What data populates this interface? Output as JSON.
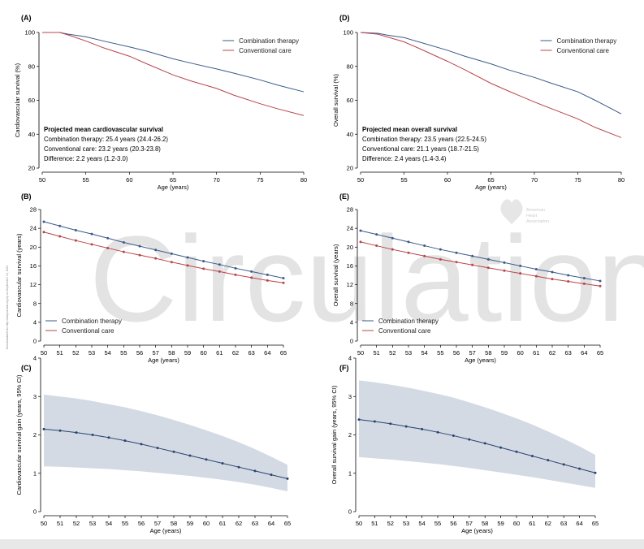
{
  "colors": {
    "combination": "#3b5a8a",
    "conventional": "#b8444a",
    "band": "#d3dae4",
    "gain_line": "#2a4370",
    "watermark": "#e3e3e3"
  },
  "watermark": {
    "text": "Circulation",
    "logo_lines": [
      "American",
      "Heart",
      "Association"
    ]
  },
  "side_credit": "Downloaded from http://ahajournals.org by on September 12, 2021",
  "chart_data": [
    {
      "panel": "(A)",
      "type": "line",
      "xlabel": "Age (years)",
      "ylabel": "Cardiovascular survival (%)",
      "xlim": [
        50,
        80
      ],
      "ylim": [
        20,
        100
      ],
      "xticks": [
        50,
        55,
        60,
        65,
        70,
        75,
        80
      ],
      "yticks": [
        20,
        40,
        60,
        80,
        100
      ],
      "legend_position": "top-right",
      "series": [
        {
          "name": "Combination therapy",
          "color_key": "combination",
          "x": [
            50,
            52,
            53,
            55,
            57,
            60,
            62,
            65,
            67,
            70,
            72,
            75,
            77,
            80
          ],
          "y": [
            100,
            100,
            99,
            97.5,
            95,
            91.5,
            89,
            84.5,
            82,
            78.5,
            76,
            72,
            69,
            65
          ]
        },
        {
          "name": "Conventional care",
          "color_key": "conventional",
          "x": [
            50,
            52,
            53,
            55,
            57,
            60,
            62,
            65,
            67,
            70,
            72,
            75,
            77,
            80
          ],
          "y": [
            100,
            100,
            98.5,
            95,
            91,
            86,
            81.5,
            75,
            71.5,
            67,
            63,
            58,
            55,
            51
          ]
        }
      ],
      "annotation": {
        "title": "Projected mean cardiovascular survival",
        "lines": [
          "Combination therapy: 25.4 years (24.4-26.2)",
          "Conventional care: 23.2 years (20.3-23.8)",
          "Difference: 2.2 years (1.2-3.0)"
        ]
      }
    },
    {
      "panel": "(D)",
      "type": "line",
      "xlabel": "Age (years)",
      "ylabel": "Overall survival (%)",
      "xlim": [
        50,
        80
      ],
      "ylim": [
        20,
        100
      ],
      "xticks": [
        50,
        55,
        60,
        65,
        70,
        75,
        80
      ],
      "yticks": [
        20,
        40,
        60,
        80,
        100
      ],
      "legend_position": "top-right",
      "series": [
        {
          "name": "Combination therapy",
          "color_key": "combination",
          "x": [
            50,
            52,
            53,
            55,
            57,
            60,
            62,
            65,
            67,
            70,
            72,
            75,
            77,
            80
          ],
          "y": [
            100,
            99.5,
            98.5,
            97,
            94,
            89.5,
            86,
            81.5,
            78,
            73.5,
            70,
            65,
            60,
            52
          ]
        },
        {
          "name": "Conventional care",
          "color_key": "conventional",
          "x": [
            50,
            52,
            53,
            55,
            57,
            60,
            62,
            65,
            67,
            70,
            72,
            75,
            77,
            80
          ],
          "y": [
            100,
            99,
            97.5,
            94.5,
            90,
            83,
            78,
            70,
            65.5,
            59,
            55,
            49,
            44,
            38
          ]
        }
      ],
      "annotation": {
        "title": "Projected mean overall survival",
        "lines": [
          "Combination therapy: 23.5 years (22.5-24.5)",
          "Conventional care: 21.1 years (18.7-21.5)",
          "Difference: 2.4 years (1.4-3.4)"
        ]
      }
    },
    {
      "panel": "(B)",
      "type": "line",
      "xlabel": "Age (years)",
      "ylabel": "Cardiovascular survival (years)",
      "xlim": [
        50,
        65
      ],
      "ylim": [
        0,
        28
      ],
      "xticks": [
        50,
        51,
        52,
        53,
        54,
        55,
        56,
        57,
        58,
        59,
        60,
        61,
        62,
        63,
        64,
        65
      ],
      "yticks": [
        0,
        4,
        8,
        12,
        16,
        20,
        24,
        28
      ],
      "legend_position": "bottom-left",
      "markers": true,
      "series": [
        {
          "name": "Combination therapy",
          "color_key": "combination",
          "x": [
            50,
            51,
            52,
            53,
            54,
            55,
            56,
            57,
            58,
            59,
            60,
            61,
            62,
            63,
            64,
            65
          ],
          "y": [
            25.4,
            24.5,
            23.6,
            22.8,
            21.9,
            21.0,
            20.2,
            19.4,
            18.6,
            17.8,
            17.0,
            16.3,
            15.5,
            14.8,
            14.1,
            13.4
          ]
        },
        {
          "name": "Conventional care",
          "color_key": "conventional",
          "x": [
            50,
            51,
            52,
            53,
            54,
            55,
            56,
            57,
            58,
            59,
            60,
            61,
            62,
            63,
            64,
            65
          ],
          "y": [
            23.2,
            22.3,
            21.4,
            20.6,
            19.8,
            19.0,
            18.3,
            17.6,
            16.8,
            16.1,
            15.4,
            14.8,
            14.1,
            13.5,
            12.9,
            12.4
          ]
        }
      ]
    },
    {
      "panel": "(E)",
      "type": "line",
      "xlabel": "Age (years)",
      "ylabel": "Overall survival (years)",
      "xlim": [
        50,
        65
      ],
      "ylim": [
        0,
        28
      ],
      "xticks": [
        50,
        51,
        52,
        53,
        54,
        55,
        56,
        57,
        58,
        59,
        60,
        61,
        62,
        63,
        64,
        65
      ],
      "yticks": [
        0,
        4,
        8,
        12,
        16,
        20,
        24,
        28
      ],
      "legend_position": "bottom-left",
      "markers": true,
      "series": [
        {
          "name": "Combination therapy",
          "color_key": "combination",
          "x": [
            50,
            51,
            52,
            53,
            54,
            55,
            56,
            57,
            58,
            59,
            60,
            61,
            62,
            63,
            64,
            65
          ],
          "y": [
            23.5,
            22.7,
            21.9,
            21.1,
            20.3,
            19.5,
            18.8,
            18.1,
            17.4,
            16.7,
            16.0,
            15.3,
            14.7,
            14.0,
            13.4,
            12.8
          ]
        },
        {
          "name": "Conventional care",
          "color_key": "conventional",
          "x": [
            50,
            51,
            52,
            53,
            54,
            55,
            56,
            57,
            58,
            59,
            60,
            61,
            62,
            63,
            64,
            65
          ],
          "y": [
            21.1,
            20.3,
            19.5,
            18.8,
            18.1,
            17.4,
            16.8,
            16.2,
            15.6,
            15.0,
            14.4,
            13.8,
            13.2,
            12.7,
            12.2,
            11.7
          ]
        }
      ]
    },
    {
      "panel": "(C)",
      "type": "area",
      "xlabel": "Age (years)",
      "ylabel": "Cardiovascular survival gain (years, 95% CI)",
      "xlim": [
        50,
        65
      ],
      "ylim": [
        0,
        4
      ],
      "xticks": [
        50,
        51,
        52,
        53,
        54,
        55,
        56,
        57,
        58,
        59,
        60,
        61,
        62,
        63,
        64,
        65
      ],
      "yticks": [
        0,
        1,
        2,
        3,
        4
      ],
      "series": [
        {
          "name": "",
          "color_key": "gain_line",
          "x": [
            50,
            51,
            52,
            53,
            54,
            55,
            56,
            57,
            58,
            59,
            60,
            61,
            62,
            63,
            64,
            65
          ],
          "y": [
            2.15,
            2.11,
            2.06,
            2.0,
            1.93,
            1.85,
            1.76,
            1.66,
            1.56,
            1.46,
            1.36,
            1.26,
            1.16,
            1.06,
            0.96,
            0.86
          ],
          "lower": [
            1.18,
            1.17,
            1.15,
            1.13,
            1.11,
            1.08,
            1.05,
            1.01,
            0.97,
            0.93,
            0.88,
            0.83,
            0.77,
            0.7,
            0.62,
            0.53
          ],
          "upper": [
            3.05,
            3.0,
            2.95,
            2.88,
            2.8,
            2.72,
            2.62,
            2.51,
            2.39,
            2.26,
            2.12,
            1.97,
            1.81,
            1.63,
            1.43,
            1.22
          ]
        }
      ]
    },
    {
      "panel": "(F)",
      "type": "area",
      "xlabel": "Age (years)",
      "ylabel": "Overall survival gain (years, 95% CI)",
      "xlim": [
        50,
        65
      ],
      "ylim": [
        0,
        4
      ],
      "xticks": [
        50,
        51,
        52,
        53,
        54,
        55,
        56,
        57,
        58,
        59,
        60,
        61,
        62,
        63,
        64,
        65
      ],
      "yticks": [
        0,
        1,
        2,
        3,
        4
      ],
      "series": [
        {
          "name": "",
          "color_key": "gain_line",
          "x": [
            50,
            51,
            52,
            53,
            54,
            55,
            56,
            57,
            58,
            59,
            60,
            61,
            62,
            63,
            64,
            65
          ],
          "y": [
            2.4,
            2.35,
            2.29,
            2.22,
            2.15,
            2.07,
            1.98,
            1.88,
            1.78,
            1.67,
            1.56,
            1.45,
            1.34,
            1.23,
            1.12,
            1.01
          ],
          "lower": [
            1.42,
            1.39,
            1.36,
            1.32,
            1.28,
            1.24,
            1.19,
            1.14,
            1.08,
            1.02,
            0.96,
            0.9,
            0.83,
            0.76,
            0.69,
            0.62
          ],
          "upper": [
            3.42,
            3.37,
            3.31,
            3.24,
            3.16,
            3.07,
            2.97,
            2.85,
            2.72,
            2.58,
            2.43,
            2.27,
            2.09,
            1.9,
            1.7,
            1.48
          ]
        }
      ]
    }
  ]
}
